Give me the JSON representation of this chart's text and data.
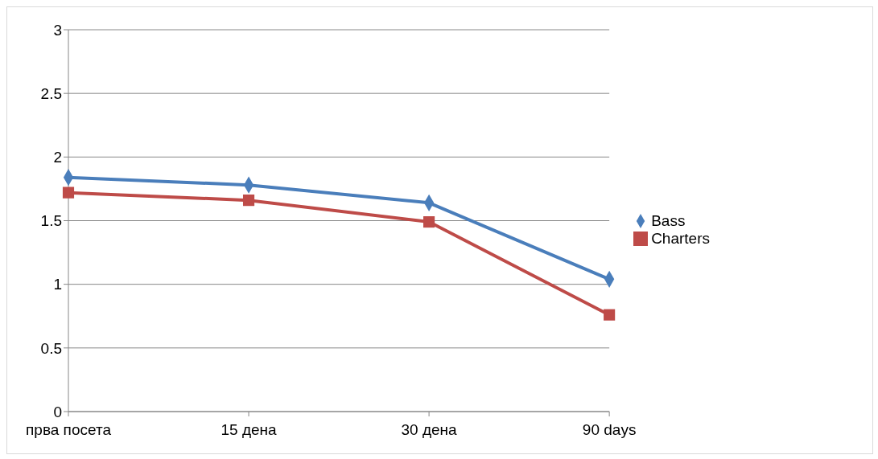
{
  "chart_data": {
    "type": "line",
    "categories": [
      "прва посета",
      "15 дена",
      "30 дена",
      "90 days"
    ],
    "series": [
      {
        "name": "Bass",
        "color": "#4a7ebb",
        "marker": "diamond",
        "values": [
          1.84,
          1.78,
          1.64,
          1.04
        ]
      },
      {
        "name": "Charters",
        "color": "#be4b48",
        "marker": "square",
        "values": [
          1.72,
          1.66,
          1.49,
          0.76
        ]
      }
    ],
    "ylim": [
      0,
      3
    ],
    "yticks": [
      0,
      0.5,
      1,
      1.5,
      2,
      2.5,
      3
    ],
    "grid": "y",
    "legend": "right"
  }
}
